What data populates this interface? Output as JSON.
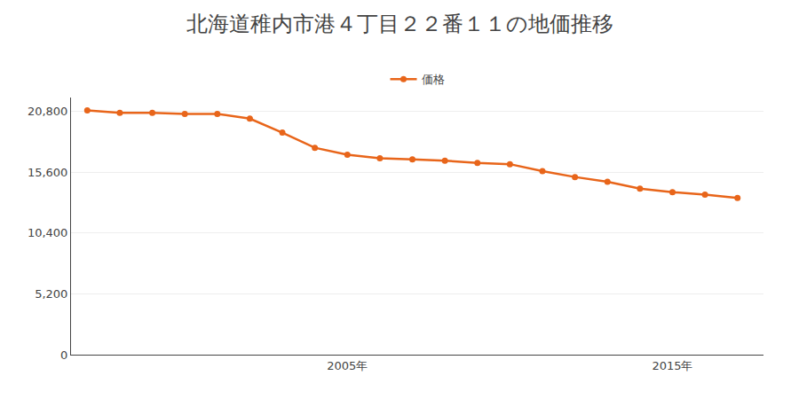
{
  "chart_data": {
    "type": "line",
    "title": "北海道稚内市港４丁目２２番１１の地価推移",
    "x": [
      1997,
      1998,
      1999,
      2000,
      2001,
      2002,
      2003,
      2004,
      2005,
      2006,
      2007,
      2008,
      2009,
      2010,
      2011,
      2012,
      2013,
      2014,
      2015,
      2016,
      2017
    ],
    "series": [
      {
        "name": "価格",
        "color": "#e8651a",
        "marker": "circle",
        "values": [
          20900,
          20700,
          20700,
          20600,
          20600,
          20200,
          19000,
          17700,
          17100,
          16800,
          16700,
          16600,
          16400,
          16300,
          15700,
          15200,
          14800,
          14200,
          13900,
          13700,
          13400
        ]
      }
    ],
    "xlim": [
      1996.5,
      2017.8
    ],
    "xticks": [
      {
        "value": 2005,
        "label": "2005年"
      },
      {
        "value": 2015,
        "label": "2015年"
      }
    ],
    "ylim": [
      0,
      22000
    ],
    "yticks": [
      0,
      {
        "value": 5200,
        "label": "5,200"
      },
      {
        "value": 10400,
        "label": "10,400"
      },
      {
        "value": 15600,
        "label": "15,600"
      },
      {
        "value": 20800,
        "label": "20,800"
      }
    ],
    "grid": true,
    "legend": "top"
  }
}
